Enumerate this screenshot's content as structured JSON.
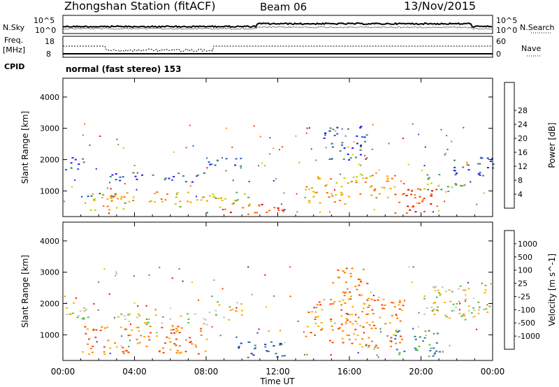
{
  "header": {
    "station": "Zhongshan Station (fitACF)",
    "beam": "Beam 06",
    "date": "13/Nov/2015"
  },
  "status_panels": {
    "nsky_label": "N.Sky",
    "nsky_ticks": [
      "10^5",
      "10^0"
    ],
    "nsearch_label": "N.Search",
    "nsearch_ticks": [
      "10^5",
      "10^0"
    ],
    "freq_label": "Freq.",
    "freq_unit": "[MHz]",
    "freq_ticks": [
      "18",
      "8"
    ],
    "nave_label": "Nave",
    "nave_ticks": [
      "60",
      "0"
    ],
    "cpid_label": "CPID",
    "cpid_text": "normal (fast stereo) 153"
  },
  "chart_data": [
    {
      "type": "heatmap",
      "name": "power",
      "ylabel": "Slant Range [km]",
      "xlabel": "Time UT",
      "x_ticks": [
        "00:00",
        "04:00",
        "08:00",
        "12:00",
        "16:00",
        "20:00",
        "00:00"
      ],
      "y_ticks": [
        1000,
        2000,
        3000,
        4000
      ],
      "ylim": [
        180,
        4600
      ],
      "xlim_hours": [
        0,
        24
      ],
      "colorbar": {
        "label": "Power [dB]",
        "tick_labels": [
          "4",
          "8",
          "12",
          "16",
          "20",
          "24",
          "28"
        ],
        "colors": [
          "#1a1aff",
          "#2b5fb8",
          "#3d8a6a",
          "#4fa85a",
          "#d6c800",
          "#ff9a00",
          "#ff6a00",
          "#ff3a00",
          "#e60000"
        ]
      },
      "echo_regions": [
        {
          "t0": 0.1,
          "t1": 1.5,
          "r0": 1700,
          "r1": 2150,
          "level": 1
        },
        {
          "t0": 1.0,
          "t1": 3.0,
          "r0": 800,
          "r1": 1000,
          "level": 1
        },
        {
          "t0": 1.5,
          "t1": 3.5,
          "r0": 400,
          "r1": 1000,
          "level": 5
        },
        {
          "t0": 2.5,
          "t1": 6.0,
          "r0": 600,
          "r1": 1000,
          "level": 5
        },
        {
          "t0": 2.5,
          "t1": 8.0,
          "r0": 1300,
          "r1": 1600,
          "level": 1
        },
        {
          "t0": 6.0,
          "t1": 10.5,
          "r0": 500,
          "r1": 1000,
          "level": 4
        },
        {
          "t0": 9.0,
          "t1": 12.5,
          "r0": 250,
          "r1": 600,
          "level": 7
        },
        {
          "t0": 8.0,
          "t1": 10.0,
          "r0": 1700,
          "r1": 2100,
          "level": 1
        },
        {
          "t0": 13.5,
          "t1": 16.0,
          "r0": 600,
          "r1": 1500,
          "level": 5
        },
        {
          "t0": 14.5,
          "t1": 17.0,
          "r0": 2000,
          "r1": 3100,
          "level": 1
        },
        {
          "t0": 16.0,
          "t1": 19.0,
          "r0": 800,
          "r1": 1600,
          "level": 5
        },
        {
          "t0": 18.5,
          "t1": 21.0,
          "r0": 300,
          "r1": 1100,
          "level": 7
        },
        {
          "t0": 20.0,
          "t1": 22.5,
          "r0": 1000,
          "r1": 1600,
          "level": 3
        },
        {
          "t0": 21.5,
          "t1": 24.0,
          "r0": 1500,
          "r1": 2100,
          "level": 1
        }
      ]
    },
    {
      "type": "heatmap",
      "name": "velocity",
      "ylabel": "Slant Range [km]",
      "xlabel": "Time UT",
      "x_ticks": [
        "00:00",
        "04:00",
        "08:00",
        "12:00",
        "16:00",
        "20:00",
        "00:00"
      ],
      "y_ticks": [
        1000,
        2000,
        3000,
        4000
      ],
      "ylim": [
        180,
        4600
      ],
      "xlim_hours": [
        0,
        24
      ],
      "colorbar": {
        "label": "Velocity [m s^-1]",
        "tick_labels": [
          "1000",
          "500",
          "100",
          "25",
          "-25",
          "-100",
          "-500",
          "-1000"
        ],
        "colors": [
          "#2030c0",
          "#2d6fb0",
          "#3a8a6a",
          "#60c050",
          "#c8c8c0",
          "#ffb000",
          "#ff8000",
          "#ff4000",
          "#e60000"
        ]
      },
      "echo_regions": [
        {
          "t0": 0.0,
          "t1": 1.5,
          "r0": 1500,
          "r1": 2200,
          "level": 4
        },
        {
          "t0": 1.0,
          "t1": 8.0,
          "r0": 400,
          "r1": 1300,
          "level": 6
        },
        {
          "t0": 3.0,
          "t1": 8.0,
          "r0": 1300,
          "r1": 1700,
          "level": 4
        },
        {
          "t0": 8.0,
          "t1": 10.0,
          "r0": 1500,
          "r1": 2100,
          "level": 4
        },
        {
          "t0": 9.5,
          "t1": 12.5,
          "r0": 250,
          "r1": 800,
          "level": 1
        },
        {
          "t0": 13.5,
          "t1": 19.0,
          "r0": 600,
          "r1": 2200,
          "level": 6
        },
        {
          "t0": 15.0,
          "t1": 17.0,
          "r0": 2200,
          "r1": 3200,
          "level": 6
        },
        {
          "t0": 18.5,
          "t1": 21.0,
          "r0": 300,
          "r1": 1200,
          "level": 2
        },
        {
          "t0": 20.0,
          "t1": 24.0,
          "r0": 1500,
          "r1": 2600,
          "level": 4
        }
      ]
    }
  ]
}
